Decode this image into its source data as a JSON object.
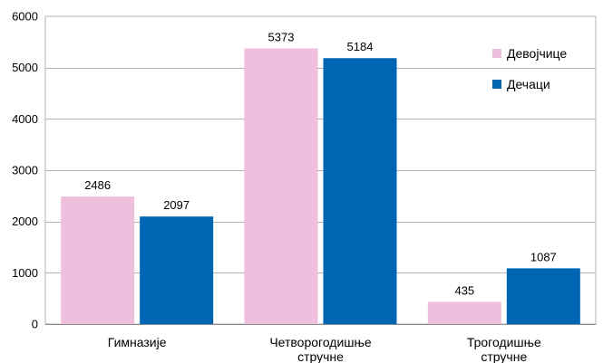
{
  "chart_data": {
    "type": "bar",
    "categories": [
      [
        "Гимназије"
      ],
      [
        "Четворогодишње",
        "стручне"
      ],
      [
        "Трогодишње",
        "стручне"
      ]
    ],
    "series": [
      {
        "name": "Девојчице",
        "color": "#F0BFDD",
        "values": [
          2486,
          5373,
          435
        ]
      },
      {
        "name": "Дечаци",
        "color": "#0066B3",
        "values": [
          2097,
          5184,
          1087
        ]
      }
    ],
    "ylim": [
      0,
      6000
    ],
    "yticks": [
      0,
      1000,
      2000,
      3000,
      4000,
      5000,
      6000
    ],
    "grid": true,
    "legend": "top-right",
    "title": "",
    "xlabel": "",
    "ylabel": ""
  }
}
